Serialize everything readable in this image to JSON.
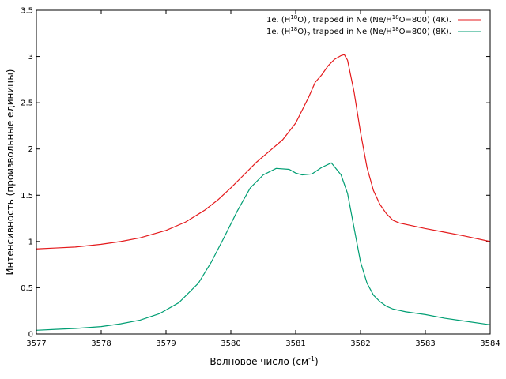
{
  "chart_data": {
    "type": "line",
    "xlabel": "Волновое число (см",
    "xlabel_sup": "-1",
    "xlabel_end": ")",
    "ylabel": "Интенсивность (произвольные единицы)",
    "xlim": [
      3577,
      3584
    ],
    "ylim": [
      0,
      3.5
    ],
    "xticks": [
      3577,
      3578,
      3579,
      3580,
      3581,
      3582,
      3583,
      3584
    ],
    "yticks": [
      0,
      0.5,
      1,
      1.5,
      2,
      2.5,
      3,
      3.5
    ],
    "xtick_labels": [
      "3577",
      "3578",
      "3579",
      "3580",
      "3581",
      "3582",
      "3583",
      "3584"
    ],
    "ytick_labels": [
      "0",
      "0.5",
      "1",
      "1.5",
      "2",
      "2.5",
      "3",
      "3.5"
    ],
    "grid": false,
    "legend_position": "top-right",
    "series": [
      {
        "name": "1e. (H218O)2 trapped in Ne (Ne/H218O=800) (4K).",
        "legend": {
          "prefix": "1e. (H",
          "sup1": "18",
          "mid1": "O)",
          "sub1": "2",
          "mid2": " trapped in Ne (Ne/H",
          "sup2": "18",
          "suffix": "O=800) (4K)."
        },
        "color": "#e41a1c",
        "x": [
          3577.0,
          3577.3,
          3577.6,
          3578.0,
          3578.3,
          3578.6,
          3579.0,
          3579.3,
          3579.6,
          3579.8,
          3580.0,
          3580.2,
          3580.4,
          3580.6,
          3580.8,
          3581.0,
          3581.1,
          3581.2,
          3581.3,
          3581.4,
          3581.5,
          3581.6,
          3581.7,
          3581.75,
          3581.8,
          3581.9,
          3582.0,
          3582.1,
          3582.2,
          3582.3,
          3582.4,
          3582.5,
          3582.6,
          3582.8,
          3583.0,
          3583.3,
          3583.6,
          3584.0
        ],
        "y": [
          0.92,
          0.93,
          0.94,
          0.97,
          1.0,
          1.04,
          1.12,
          1.21,
          1.34,
          1.45,
          1.58,
          1.72,
          1.86,
          1.98,
          2.1,
          2.28,
          2.42,
          2.56,
          2.72,
          2.8,
          2.9,
          2.97,
          3.01,
          3.02,
          2.96,
          2.62,
          2.18,
          1.8,
          1.55,
          1.4,
          1.3,
          1.23,
          1.2,
          1.17,
          1.14,
          1.1,
          1.06,
          1.0
        ]
      },
      {
        "name": "1e. (H218O)2 trapped in Ne (Ne/H218O=800) (8K).",
        "legend": {
          "prefix": "1e. (H",
          "sup1": "18",
          "mid1": "O)",
          "sub1": "2",
          "mid2": " trapped in Ne (Ne/H",
          "sup2": "18",
          "suffix": "O=800) (8K)."
        },
        "color": "#009e73",
        "x": [
          3577.0,
          3577.3,
          3577.6,
          3578.0,
          3578.3,
          3578.6,
          3578.9,
          3579.2,
          3579.5,
          3579.7,
          3579.9,
          3580.1,
          3580.3,
          3580.5,
          3580.7,
          3580.9,
          3581.0,
          3581.1,
          3581.25,
          3581.4,
          3581.55,
          3581.7,
          3581.8,
          3581.9,
          3582.0,
          3582.1,
          3582.2,
          3582.3,
          3582.4,
          3582.5,
          3582.7,
          3583.0,
          3583.3,
          3583.6,
          3584.0
        ],
        "y": [
          0.04,
          0.05,
          0.06,
          0.08,
          0.11,
          0.15,
          0.22,
          0.34,
          0.55,
          0.78,
          1.05,
          1.33,
          1.58,
          1.72,
          1.79,
          1.78,
          1.74,
          1.72,
          1.73,
          1.8,
          1.85,
          1.72,
          1.52,
          1.15,
          0.78,
          0.55,
          0.42,
          0.35,
          0.3,
          0.27,
          0.24,
          0.21,
          0.17,
          0.14,
          0.1
        ]
      }
    ]
  }
}
